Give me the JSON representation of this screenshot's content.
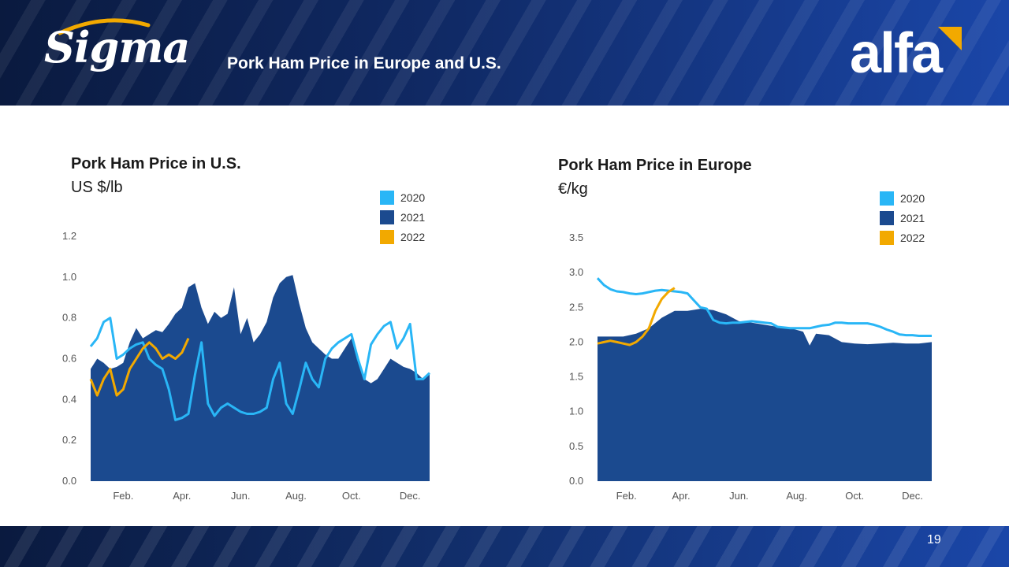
{
  "header": {
    "slide_title": "Pork Ham Price in Europe and U.S.",
    "logo_left": "Sigma",
    "logo_right": "alfa"
  },
  "footer": {
    "page_number": "19"
  },
  "colors": {
    "s2020": "#29b6f6",
    "s2021": "#1b4a8f",
    "s2022": "#f2a900"
  },
  "chart_data": [
    {
      "type": "area",
      "title": "Pork Ham Price in U.S.",
      "ylabel": "US $/lb",
      "ylim": [
        0,
        1.2
      ],
      "yticks": [
        "0.0",
        "0.2",
        "0.4",
        "0.6",
        "0.8",
        "1.0",
        "1.2"
      ],
      "xlim": [
        0,
        52
      ],
      "xticks": [
        {
          "label": "Feb.",
          "x": 5
        },
        {
          "label": "Apr.",
          "x": 14
        },
        {
          "label": "Jun.",
          "x": 23
        },
        {
          "label": "Aug.",
          "x": 31.5
        },
        {
          "label": "Oct.",
          "x": 40
        },
        {
          "label": "Dec.",
          "x": 49
        }
      ],
      "legend": [
        "2020",
        "2021",
        "2022"
      ],
      "series": [
        {
          "name": "2021",
          "style": "area",
          "x": [
            0,
            1,
            2,
            3,
            4,
            5,
            6,
            7,
            8,
            9,
            10,
            11,
            12,
            13,
            14,
            15,
            16,
            17,
            18,
            19,
            20,
            21,
            22,
            23,
            24,
            25,
            26,
            27,
            28,
            29,
            30,
            31,
            32,
            33,
            34,
            35,
            36,
            37,
            38,
            39,
            40,
            41,
            42,
            43,
            44,
            45,
            46,
            47,
            48,
            49,
            50,
            51,
            52
          ],
          "values": [
            0.55,
            0.6,
            0.58,
            0.55,
            0.56,
            0.58,
            0.68,
            0.75,
            0.7,
            0.72,
            0.74,
            0.73,
            0.77,
            0.82,
            0.85,
            0.95,
            0.97,
            0.85,
            0.77,
            0.83,
            0.8,
            0.82,
            0.95,
            0.72,
            0.8,
            0.68,
            0.72,
            0.78,
            0.9,
            0.97,
            1.0,
            1.01,
            0.87,
            0.75,
            0.68,
            0.65,
            0.62,
            0.6,
            0.6,
            0.65,
            0.7,
            0.62,
            0.5,
            0.48,
            0.5,
            0.55,
            0.6,
            0.58,
            0.56,
            0.55,
            0.53,
            0.5,
            0.53
          ]
        },
        {
          "name": "2020",
          "style": "line",
          "x": [
            0,
            1,
            2,
            3,
            4,
            5,
            6,
            7,
            8,
            9,
            10,
            11,
            12,
            13,
            14,
            15,
            16,
            17,
            18,
            19,
            20,
            21,
            22,
            23,
            24,
            25,
            26,
            27,
            28,
            29,
            30,
            31,
            32,
            33,
            34,
            35,
            36,
            37,
            38,
            39,
            40,
            41,
            42,
            43,
            44,
            45,
            46,
            47,
            48,
            49,
            50,
            51,
            52
          ],
          "values": [
            0.66,
            0.7,
            0.78,
            0.8,
            0.6,
            0.62,
            0.65,
            0.67,
            0.68,
            0.6,
            0.57,
            0.55,
            0.45,
            0.3,
            0.31,
            0.33,
            0.52,
            0.68,
            0.38,
            0.32,
            0.36,
            0.38,
            0.36,
            0.34,
            0.33,
            0.33,
            0.34,
            0.36,
            0.5,
            0.58,
            0.38,
            0.33,
            0.45,
            0.58,
            0.5,
            0.46,
            0.6,
            0.65,
            0.68,
            0.7,
            0.72,
            0.6,
            0.5,
            0.67,
            0.72,
            0.76,
            0.78,
            0.65,
            0.7,
            0.77,
            0.5,
            0.5,
            0.53
          ]
        },
        {
          "name": "2022",
          "style": "line",
          "x": [
            0,
            1,
            2,
            3,
            4,
            5,
            6,
            7,
            8,
            9,
            10,
            11,
            12,
            13,
            14,
            15
          ],
          "values": [
            0.5,
            0.42,
            0.5,
            0.55,
            0.42,
            0.45,
            0.55,
            0.6,
            0.65,
            0.68,
            0.65,
            0.6,
            0.62,
            0.6,
            0.63,
            0.7
          ]
        }
      ]
    },
    {
      "type": "area",
      "title": "Pork Ham Price in Europe",
      "ylabel": "€/kg",
      "ylim": [
        0,
        3.5
      ],
      "yticks": [
        "0.0",
        "0.5",
        "1.0",
        "1.5",
        "2.0",
        "2.5",
        "3.0",
        "3.5"
      ],
      "xlim": [
        0,
        52
      ],
      "xticks": [
        {
          "label": "Feb.",
          "x": 4.5
        },
        {
          "label": "Apr.",
          "x": 13
        },
        {
          "label": "Jun.",
          "x": 22
        },
        {
          "label": "Aug.",
          "x": 31
        },
        {
          "label": "Oct.",
          "x": 40
        },
        {
          "label": "Dec.",
          "x": 49
        }
      ],
      "legend": [
        "2020",
        "2021",
        "2022"
      ],
      "series": [
        {
          "name": "2021",
          "style": "area",
          "x": [
            0,
            2,
            4,
            6,
            8,
            10,
            12,
            14,
            16,
            18,
            20,
            22,
            24,
            26,
            28,
            30,
            32,
            33,
            34,
            36,
            38,
            40,
            42,
            44,
            46,
            48,
            50,
            52
          ],
          "values": [
            2.08,
            2.08,
            2.08,
            2.12,
            2.2,
            2.35,
            2.45,
            2.45,
            2.48,
            2.46,
            2.4,
            2.3,
            2.28,
            2.25,
            2.22,
            2.2,
            2.15,
            1.95,
            2.12,
            2.1,
            2.0,
            1.98,
            1.97,
            1.98,
            1.99,
            1.98,
            1.98,
            2.0
          ]
        },
        {
          "name": "2020",
          "style": "line",
          "x": [
            0,
            1,
            2,
            3,
            4,
            5,
            6,
            7,
            8,
            9,
            10,
            11,
            12,
            13,
            14,
            15,
            16,
            17,
            18,
            19,
            20,
            21,
            22,
            23,
            24,
            25,
            26,
            27,
            28,
            29,
            30,
            31,
            32,
            33,
            34,
            35,
            36,
            37,
            38,
            39,
            40,
            41,
            42,
            43,
            44,
            45,
            46,
            47,
            48,
            49,
            50,
            51,
            52
          ],
          "values": [
            2.92,
            2.82,
            2.76,
            2.73,
            2.72,
            2.7,
            2.69,
            2.7,
            2.72,
            2.74,
            2.75,
            2.74,
            2.73,
            2.72,
            2.7,
            2.6,
            2.5,
            2.48,
            2.32,
            2.28,
            2.27,
            2.28,
            2.28,
            2.29,
            2.3,
            2.29,
            2.28,
            2.27,
            2.22,
            2.21,
            2.2,
            2.2,
            2.2,
            2.2,
            2.22,
            2.24,
            2.25,
            2.28,
            2.28,
            2.27,
            2.27,
            2.27,
            2.27,
            2.25,
            2.22,
            2.18,
            2.15,
            2.11,
            2.1,
            2.1,
            2.09,
            2.09,
            2.09
          ]
        },
        {
          "name": "2022",
          "style": "line",
          "x": [
            0,
            1,
            2,
            3,
            4,
            5,
            6,
            7,
            8,
            9,
            10,
            11,
            12
          ],
          "values": [
            1.98,
            2.0,
            2.02,
            2.0,
            1.98,
            1.96,
            2.0,
            2.08,
            2.2,
            2.45,
            2.62,
            2.72,
            2.78
          ]
        }
      ]
    }
  ]
}
